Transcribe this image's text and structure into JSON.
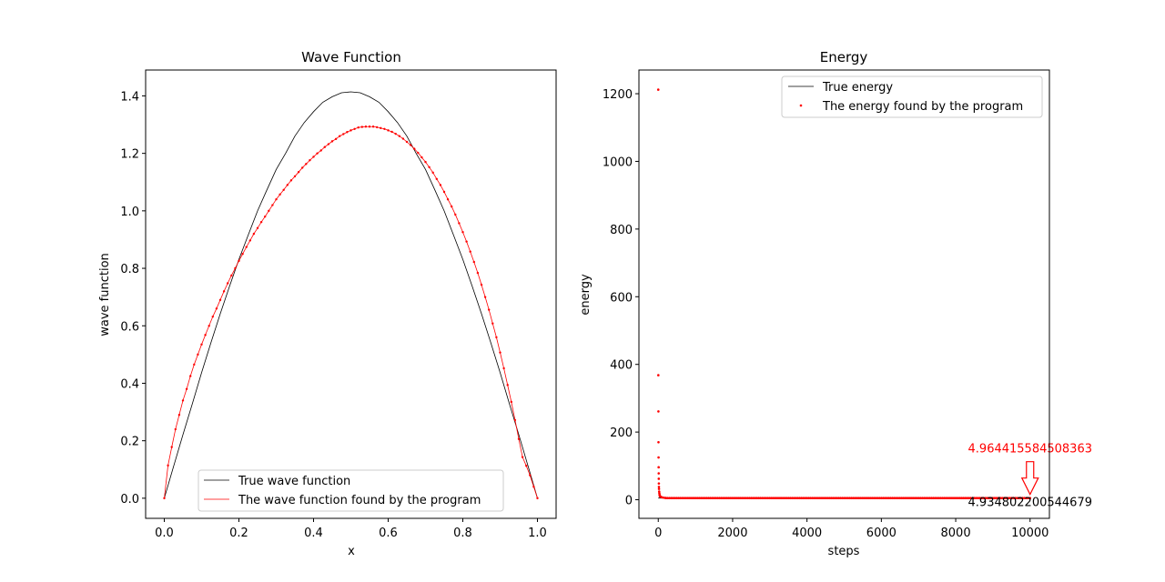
{
  "chart_data": [
    {
      "type": "line",
      "title": "Wave Function",
      "xlabel": "x",
      "ylabel": "wave function",
      "xlim": [
        -0.05,
        1.05
      ],
      "ylim": [
        -0.07,
        1.49
      ],
      "xticks": [
        0.0,
        0.2,
        0.4,
        0.6,
        0.8,
        1.0
      ],
      "xtick_labels": [
        "0.0",
        "0.2",
        "0.4",
        "0.6",
        "0.8",
        "1.0"
      ],
      "yticks": [
        0.0,
        0.2,
        0.4,
        0.6,
        0.8,
        1.0,
        1.2,
        1.4
      ],
      "ytick_labels": [
        "0.0",
        "0.2",
        "0.4",
        "0.6",
        "0.8",
        "1.0",
        "1.2",
        "1.4"
      ],
      "legend_position": "lower-center",
      "series": [
        {
          "name": "True wave function",
          "color": "#000000",
          "style": "line",
          "x": [
            0.0,
            0.025,
            0.05,
            0.075,
            0.1,
            0.125,
            0.15,
            0.175,
            0.2,
            0.225,
            0.25,
            0.275,
            0.3,
            0.325,
            0.35,
            0.375,
            0.4,
            0.425,
            0.45,
            0.475,
            0.5,
            0.525,
            0.55,
            0.575,
            0.6,
            0.625,
            0.65,
            0.675,
            0.7,
            0.725,
            0.75,
            0.775,
            0.8,
            0.825,
            0.85,
            0.875,
            0.9,
            0.925,
            0.95,
            0.975,
            1.0
          ],
          "y": [
            0.0,
            0.111,
            0.221,
            0.328,
            0.437,
            0.541,
            0.642,
            0.738,
            0.831,
            0.916,
            1.0,
            1.073,
            1.144,
            1.2,
            1.26,
            1.307,
            1.345,
            1.378,
            1.397,
            1.411,
            1.414,
            1.411,
            1.397,
            1.378,
            1.345,
            1.307,
            1.26,
            1.2,
            1.144,
            1.073,
            1.0,
            0.916,
            0.831,
            0.738,
            0.642,
            0.541,
            0.437,
            0.328,
            0.221,
            0.111,
            0.0
          ]
        },
        {
          "name": "The wave function found by the program",
          "color": "#ff0000",
          "style": "line-markers",
          "x": [
            0.0,
            0.01,
            0.02,
            0.03,
            0.04,
            0.05,
            0.06,
            0.07,
            0.08,
            0.09,
            0.1,
            0.11,
            0.12,
            0.13,
            0.14,
            0.15,
            0.16,
            0.17,
            0.18,
            0.19,
            0.2,
            0.21,
            0.22,
            0.23,
            0.24,
            0.25,
            0.26,
            0.27,
            0.28,
            0.29,
            0.3,
            0.31,
            0.32,
            0.33,
            0.34,
            0.35,
            0.36,
            0.37,
            0.38,
            0.39,
            0.4,
            0.41,
            0.42,
            0.43,
            0.44,
            0.45,
            0.46,
            0.47,
            0.48,
            0.49,
            0.5,
            0.51,
            0.52,
            0.53,
            0.54,
            0.55,
            0.56,
            0.57,
            0.58,
            0.59,
            0.6,
            0.61,
            0.62,
            0.63,
            0.64,
            0.65,
            0.66,
            0.67,
            0.68,
            0.69,
            0.7,
            0.71,
            0.72,
            0.73,
            0.74,
            0.75,
            0.76,
            0.77,
            0.78,
            0.79,
            0.8,
            0.81,
            0.82,
            0.83,
            0.84,
            0.85,
            0.86,
            0.87,
            0.88,
            0.89,
            0.9,
            0.91,
            0.92,
            0.93,
            0.94,
            0.95,
            0.96,
            0.97,
            0.98,
            0.99,
            1.0
          ],
          "y": [
            0.0,
            0.114,
            0.178,
            0.24,
            0.29,
            0.34,
            0.38,
            0.425,
            0.465,
            0.5,
            0.535,
            0.568,
            0.6,
            0.632,
            0.66,
            0.69,
            0.72,
            0.748,
            0.775,
            0.8,
            0.826,
            0.85,
            0.874,
            0.897,
            0.92,
            0.94,
            0.961,
            0.98,
            1.0,
            1.02,
            1.04,
            1.057,
            1.073,
            1.09,
            1.106,
            1.12,
            1.135,
            1.15,
            1.163,
            1.176,
            1.188,
            1.2,
            1.21,
            1.222,
            1.232,
            1.242,
            1.25,
            1.26,
            1.267,
            1.274,
            1.28,
            1.285,
            1.29,
            1.292,
            1.293,
            1.293,
            1.293,
            1.291,
            1.288,
            1.285,
            1.28,
            1.275,
            1.268,
            1.26,
            1.251,
            1.24,
            1.229,
            1.216,
            1.202,
            1.186,
            1.17,
            1.152,
            1.133,
            1.111,
            1.09,
            1.066,
            1.04,
            1.015,
            0.987,
            0.957,
            0.926,
            0.893,
            0.858,
            0.822,
            0.784,
            0.743,
            0.7,
            0.656,
            0.608,
            0.56,
            0.507,
            0.452,
            0.394,
            0.335,
            0.272,
            0.206,
            0.143,
            0.113,
            0.08,
            0.04,
            0.0
          ]
        }
      ]
    },
    {
      "type": "scatter",
      "title": "Energy",
      "xlabel": "steps",
      "ylabel": "energy",
      "xlim": [
        -520,
        10520
      ],
      "ylim": [
        -55,
        1270
      ],
      "xticks": [
        0,
        2000,
        4000,
        6000,
        8000,
        10000
      ],
      "xtick_labels": [
        "0",
        "2000",
        "4000",
        "6000",
        "8000",
        "10000"
      ],
      "yticks": [
        0,
        200,
        400,
        600,
        800,
        1000,
        1200
      ],
      "ytick_labels": [
        "0",
        "200",
        "400",
        "600",
        "800",
        "1000",
        "1200"
      ],
      "legend_position": "top-right",
      "true_energy": 4.934802200544679,
      "series": [
        {
          "name": "True energy",
          "color": "#000000",
          "style": "line",
          "x": [
            0,
            10000
          ],
          "y": [
            4.934802200544679,
            4.934802200544679
          ]
        },
        {
          "name": "The energy found by the program",
          "color": "#ff0000",
          "style": "scatter",
          "x": [
            0,
            2,
            4,
            6,
            8,
            10,
            12,
            14,
            16,
            18,
            20,
            25,
            30,
            35,
            40,
            50,
            60,
            80,
            100,
            150,
            200
          ],
          "y": [
            1212,
            368,
            261,
            170,
            125,
            96,
            78,
            62,
            48,
            38,
            32,
            24,
            19,
            15,
            12,
            10,
            9,
            8,
            7,
            6,
            5.5
          ],
          "tail": {
            "x_start": 200,
            "x_end": 10000,
            "step": 50,
            "y": 4.964415584508363
          }
        }
      ],
      "annotations": [
        {
          "text": "4.964415584508363",
          "color": "#ff0000",
          "x": 10000,
          "y": 4.964415584508363
        },
        {
          "text": "4.934802200544679",
          "color": "#000000",
          "x": 10000,
          "y": 4.934802200544679
        }
      ]
    }
  ]
}
